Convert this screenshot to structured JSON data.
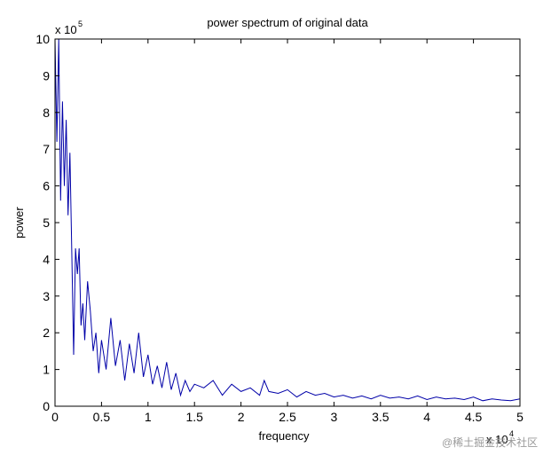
{
  "chart_data": {
    "type": "line",
    "title": "power spectrum of original data",
    "xlabel": "frequency",
    "ylabel": "power",
    "xlim": [
      0,
      50000
    ],
    "ylim": [
      0,
      1000000
    ],
    "x_multiplier_label": {
      "base": "x 10",
      "exponent": "4"
    },
    "y_multiplier_label": {
      "base": "x 10",
      "exponent": "5"
    },
    "x_ticks": [
      0,
      5000,
      10000,
      15000,
      20000,
      25000,
      30000,
      35000,
      40000,
      45000,
      50000
    ],
    "x_tick_labels": [
      "0",
      "0.5",
      "1",
      "1.5",
      "2",
      "2.5",
      "3",
      "3.5",
      "4",
      "4.5",
      "5"
    ],
    "y_ticks": [
      0,
      100000,
      200000,
      300000,
      400000,
      500000,
      600000,
      700000,
      800000,
      900000,
      1000000
    ],
    "y_tick_labels": [
      "0",
      "1",
      "2",
      "3",
      "4",
      "5",
      "6",
      "7",
      "8",
      "9",
      "10"
    ],
    "grid": false,
    "legend": "none",
    "line_color": "#0000a8",
    "series": [
      {
        "x": [
          0,
          200,
          400,
          600,
          800,
          1000,
          1200,
          1400,
          1600,
          1800,
          2000,
          2200,
          2400,
          2600,
          2800,
          3000,
          3200,
          3500,
          3800,
          4100,
          4400,
          4700,
          5000,
          5500,
          6000,
          6500,
          7000,
          7500,
          8000,
          8500,
          9000,
          9500,
          10000,
          10500,
          11000,
          11500,
          12000,
          12500,
          13000,
          13500,
          14000,
          14500,
          15000,
          16000,
          17000,
          18000,
          19000,
          20000,
          21000,
          22000,
          22500,
          23000,
          24000,
          25000,
          26000,
          27000,
          28000,
          29000,
          30000,
          31000,
          32000,
          33000,
          34000,
          35000,
          36000,
          37000,
          38000,
          39000,
          40000,
          41000,
          42000,
          43000,
          44000,
          45000,
          46000,
          47000,
          48000,
          49000,
          50000
        ],
        "y": [
          1000000,
          720000,
          1000000,
          560000,
          830000,
          600000,
          780000,
          520000,
          690000,
          420000,
          140000,
          430000,
          360000,
          430000,
          220000,
          280000,
          180000,
          340000,
          260000,
          150000,
          200000,
          90000,
          180000,
          100000,
          240000,
          110000,
          180000,
          70000,
          170000,
          90000,
          200000,
          80000,
          140000,
          60000,
          110000,
          50000,
          120000,
          45000,
          90000,
          30000,
          70000,
          40000,
          60000,
          50000,
          70000,
          30000,
          60000,
          40000,
          50000,
          30000,
          70000,
          40000,
          35000,
          45000,
          25000,
          40000,
          30000,
          35000,
          25000,
          30000,
          22000,
          28000,
          20000,
          30000,
          22000,
          25000,
          20000,
          28000,
          18000,
          25000,
          20000,
          22000,
          18000,
          25000,
          15000,
          20000,
          17000,
          15000,
          20000
        ]
      }
    ]
  },
  "watermark": "@稀土掘金技术社区"
}
